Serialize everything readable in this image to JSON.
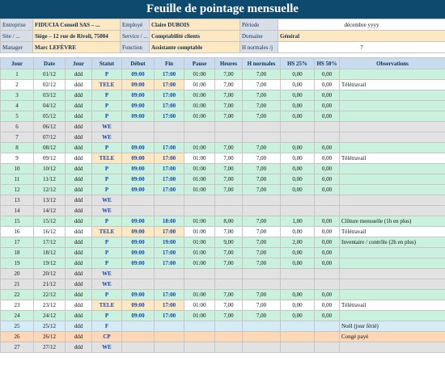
{
  "title": "Feuille de pointage mensuelle",
  "info": {
    "entreprise_label": "Entreprise",
    "entreprise_value": "FIDUCIA Conseil SAS – ...",
    "employe_label": "Employé",
    "employe_value": "Claire DUBOIS",
    "periode_label": "Période",
    "periode_value": "décembre yyyy",
    "site_label": "Site / ...",
    "site_value": "Siège – 12 rue de Rivoli, 75004",
    "service_label": "Service / ...",
    "service_value": "Comptabilité clients",
    "domaine_label": "Domaine",
    "domaine_value": "Général",
    "manager_label": "Manager",
    "manager_value": "Marc LEFÈVRE",
    "fonction_label": "Fonction",
    "fonction_value": "Assistante comptable",
    "hnormales_label": "H normales /j",
    "hnormales_value": "7"
  },
  "columns": [
    "Jour",
    "Date",
    "Jour",
    "Statut",
    "Début",
    "Fin",
    "Pause",
    "Heures",
    "H normales",
    "HS 25%",
    "HS 50%",
    "Observations"
  ],
  "rows": [
    {
      "n": "1",
      "date": "01/12",
      "jour": "ddd",
      "statut": "P",
      "debut": "09:00",
      "fin": "17:00",
      "pause": "01:00",
      "heures": "7,00",
      "hn": "7,00",
      "hs25": "0,00",
      "hs50": "0,00",
      "obs": "",
      "type": "work"
    },
    {
      "n": "2",
      "date": "02/12",
      "jour": "ddd",
      "statut": "TELE",
      "debut": "09:00",
      "fin": "17:00",
      "pause": "01:00",
      "heures": "7,00",
      "hn": "7,00",
      "hs25": "0,00",
      "hs50": "0,00",
      "obs": "Télétravail",
      "type": "alt"
    },
    {
      "n": "3",
      "date": "03/12",
      "jour": "ddd",
      "statut": "P",
      "debut": "09:00",
      "fin": "17:00",
      "pause": "01:00",
      "heures": "7,00",
      "hn": "7,00",
      "hs25": "0,00",
      "hs50": "0,00",
      "obs": "",
      "type": "work"
    },
    {
      "n": "4",
      "date": "04/12",
      "jour": "ddd",
      "statut": "P",
      "debut": "09:00",
      "fin": "17:00",
      "pause": "01:00",
      "heures": "7,00",
      "hn": "7,00",
      "hs25": "0,00",
      "hs50": "0,00",
      "obs": "",
      "type": "work"
    },
    {
      "n": "5",
      "date": "05/12",
      "jour": "ddd",
      "statut": "P",
      "debut": "09:00",
      "fin": "17:00",
      "pause": "01:00",
      "heures": "7,00",
      "hn": "7,00",
      "hs25": "0,00",
      "hs50": "0,00",
      "obs": "",
      "type": "work"
    },
    {
      "n": "6",
      "date": "06/12",
      "jour": "ddd",
      "statut": "WE",
      "debut": "",
      "fin": "",
      "pause": "",
      "heures": "",
      "hn": "",
      "hs25": "",
      "hs50": "",
      "obs": "",
      "type": "we"
    },
    {
      "n": "7",
      "date": "07/12",
      "jour": "ddd",
      "statut": "WE",
      "debut": "",
      "fin": "",
      "pause": "",
      "heures": "",
      "hn": "",
      "hs25": "",
      "hs50": "",
      "obs": "",
      "type": "we"
    },
    {
      "n": "8",
      "date": "08/12",
      "jour": "ddd",
      "statut": "P",
      "debut": "09:00",
      "fin": "17:00",
      "pause": "01:00",
      "heures": "7,00",
      "hn": "7,00",
      "hs25": "0,00",
      "hs50": "0,00",
      "obs": "",
      "type": "work"
    },
    {
      "n": "9",
      "date": "09/12",
      "jour": "ddd",
      "statut": "TELE",
      "debut": "09:00",
      "fin": "17:00",
      "pause": "01:00",
      "heures": "7,00",
      "hn": "7,00",
      "hs25": "0,00",
      "hs50": "0,00",
      "obs": "Télétravail",
      "type": "alt"
    },
    {
      "n": "10",
      "date": "10/12",
      "jour": "ddd",
      "statut": "P",
      "debut": "09:00",
      "fin": "17:00",
      "pause": "01:00",
      "heures": "7,00",
      "hn": "7,00",
      "hs25": "0,00",
      "hs50": "0,00",
      "obs": "",
      "type": "work"
    },
    {
      "n": "11",
      "date": "11/12",
      "jour": "ddd",
      "statut": "P",
      "debut": "09:00",
      "fin": "17:00",
      "pause": "01:00",
      "heures": "7,00",
      "hn": "7,00",
      "hs25": "0,00",
      "hs50": "0,00",
      "obs": "",
      "type": "work"
    },
    {
      "n": "12",
      "date": "12/12",
      "jour": "ddd",
      "statut": "P",
      "debut": "09:00",
      "fin": "17:00",
      "pause": "01:00",
      "heures": "7,00",
      "hn": "7,00",
      "hs25": "0,00",
      "hs50": "0,00",
      "obs": "",
      "type": "work"
    },
    {
      "n": "13",
      "date": "13/12",
      "jour": "ddd",
      "statut": "WE",
      "debut": "",
      "fin": "",
      "pause": "",
      "heures": "",
      "hn": "",
      "hs25": "",
      "hs50": "",
      "obs": "",
      "type": "we"
    },
    {
      "n": "14",
      "date": "14/12",
      "jour": "ddd",
      "statut": "WE",
      "debut": "",
      "fin": "",
      "pause": "",
      "heures": "",
      "hn": "",
      "hs25": "",
      "hs50": "",
      "obs": "",
      "type": "we"
    },
    {
      "n": "15",
      "date": "15/12",
      "jour": "ddd",
      "statut": "P",
      "debut": "09:00",
      "fin": "18:00",
      "pause": "01:00",
      "heures": "8,00",
      "hn": "7,00",
      "hs25": "1,00",
      "hs50": "0,00",
      "obs": "Clôture mensuelle (1h en plus)",
      "type": "work"
    },
    {
      "n": "16",
      "date": "16/12",
      "jour": "ddd",
      "statut": "TELE",
      "debut": "09:00",
      "fin": "17:00",
      "pause": "01:00",
      "heures": "7,00",
      "hn": "7,00",
      "hs25": "0,00",
      "hs50": "0,00",
      "obs": "Télétravail",
      "type": "alt"
    },
    {
      "n": "17",
      "date": "17/12",
      "jour": "ddd",
      "statut": "P",
      "debut": "09:00",
      "fin": "19:00",
      "pause": "01:00",
      "heures": "9,00",
      "hn": "7,00",
      "hs25": "2,00",
      "hs50": "0,00",
      "obs": "Inventaire / contrôle (2h en plus)",
      "type": "work"
    },
    {
      "n": "18",
      "date": "18/12",
      "jour": "ddd",
      "statut": "P",
      "debut": "09:00",
      "fin": "17:00",
      "pause": "01:00",
      "heures": "7,00",
      "hn": "7,00",
      "hs25": "0,00",
      "hs50": "0,00",
      "obs": "",
      "type": "work"
    },
    {
      "n": "19",
      "date": "19/12",
      "jour": "ddd",
      "statut": "P",
      "debut": "09:00",
      "fin": "17:00",
      "pause": "01:00",
      "heures": "7,00",
      "hn": "7,00",
      "hs25": "0,00",
      "hs50": "0,00",
      "obs": "",
      "type": "work"
    },
    {
      "n": "20",
      "date": "20/12",
      "jour": "ddd",
      "statut": "WE",
      "debut": "",
      "fin": "",
      "pause": "",
      "heures": "",
      "hn": "",
      "hs25": "",
      "hs50": "",
      "obs": "",
      "type": "we"
    },
    {
      "n": "21",
      "date": "21/12",
      "jour": "ddd",
      "statut": "WE",
      "debut": "",
      "fin": "",
      "pause": "",
      "heures": "",
      "hn": "",
      "hs25": "",
      "hs50": "",
      "obs": "",
      "type": "we"
    },
    {
      "n": "22",
      "date": "22/12",
      "jour": "ddd",
      "statut": "P",
      "debut": "09:00",
      "fin": "17:00",
      "pause": "01:00",
      "heures": "7,00",
      "hn": "7,00",
      "hs25": "0,00",
      "hs50": "0,00",
      "obs": "",
      "type": "work"
    },
    {
      "n": "23",
      "date": "23/12",
      "jour": "ddd",
      "statut": "TELE",
      "debut": "09:00",
      "fin": "17:00",
      "pause": "01:00",
      "heures": "7,00",
      "hn": "7,00",
      "hs25": "0,00",
      "hs50": "0,00",
      "obs": "Télétravail",
      "type": "alt"
    },
    {
      "n": "24",
      "date": "24/12",
      "jour": "ddd",
      "statut": "P",
      "debut": "09:00",
      "fin": "17:00",
      "pause": "01:00",
      "heures": "7,00",
      "hn": "7,00",
      "hs25": "0,00",
      "hs50": "0,00",
      "obs": "",
      "type": "work"
    },
    {
      "n": "25",
      "date": "25/12",
      "jour": "ddd",
      "statut": "F",
      "debut": "",
      "fin": "",
      "pause": "",
      "heures": "",
      "hn": "",
      "hs25": "",
      "hs50": "",
      "obs": "Noël (jour férié)",
      "type": "ferie"
    },
    {
      "n": "26",
      "date": "26/12",
      "jour": "ddd",
      "statut": "CP",
      "debut": "",
      "fin": "",
      "pause": "",
      "heures": "",
      "hn": "",
      "hs25": "",
      "hs50": "",
      "obs": "Congé payé",
      "type": "conge"
    },
    {
      "n": "27",
      "date": "27/12",
      "jour": "ddd",
      "statut": "WE",
      "debut": "",
      "fin": "",
      "pause": "",
      "heures": "",
      "hn": "",
      "hs25": "",
      "hs50": "",
      "obs": "",
      "type": "we"
    }
  ],
  "colors": {
    "header_bg": "#0e4a6e",
    "work_row": "#c9f1dd",
    "we_row": "#e2e2e2",
    "ferie_row": "#d5ecf6",
    "conge_row": "#fdd7b6",
    "status_text": "#1546b0"
  }
}
